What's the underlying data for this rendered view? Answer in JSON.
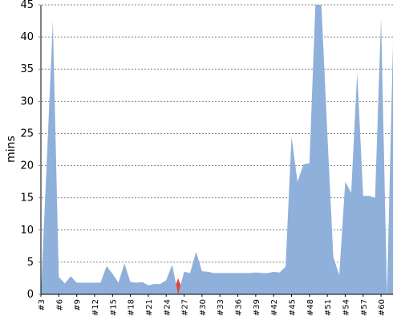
{
  "chart_data": {
    "type": "area",
    "ylabel": "mins",
    "categories": [
      "#3",
      null,
      null,
      "#6",
      null,
      null,
      "#9",
      null,
      null,
      "#12",
      null,
      null,
      "#15",
      null,
      null,
      "#18",
      null,
      null,
      "#21",
      null,
      null,
      "#24",
      null,
      null,
      "#27",
      null,
      null,
      "#30",
      null,
      null,
      "#33",
      null,
      null,
      "#36",
      null,
      null,
      "#39",
      null,
      null,
      "#42",
      null,
      null,
      "#45",
      null,
      null,
      "#48",
      null,
      null,
      "#51",
      null,
      null,
      "#54",
      null,
      null,
      "#57",
      null,
      null,
      "#60",
      null,
      null
    ],
    "series": [
      {
        "color": "#e0453a",
        "values": [
          null,
          null,
          null,
          null,
          null,
          null,
          null,
          null,
          null,
          null,
          null,
          null,
          null,
          null,
          null,
          null,
          null,
          null,
          null,
          null,
          null,
          null,
          0,
          2.5,
          0,
          null,
          null,
          null,
          null,
          null,
          null,
          null,
          null,
          null,
          null,
          null,
          null,
          null,
          null,
          null,
          null,
          null,
          null,
          null,
          null,
          null,
          null,
          null,
          null,
          null,
          null,
          null,
          null,
          null,
          null,
          null,
          null,
          null,
          null,
          null
        ]
      },
      {
        "color": "#8fb0da",
        "values": [
          0,
          21,
          42.5,
          2.7,
          1.7,
          2.8,
          1.8,
          1.8,
          1.8,
          1.8,
          1.8,
          4.4,
          3.2,
          1.8,
          4.8,
          1.9,
          1.8,
          1.9,
          1.4,
          1.6,
          1.6,
          2.2,
          4.6,
          0,
          3.5,
          3.3,
          6.6,
          3.6,
          3.5,
          3.3,
          3.3,
          3.3,
          3.3,
          3.3,
          3.3,
          3.3,
          3.4,
          3.3,
          3.3,
          3.5,
          3.4,
          4.3,
          24.5,
          17.5,
          20.2,
          20.4,
          45,
          45,
          25,
          5.8,
          3,
          17.5,
          15.8,
          34.5,
          15.3,
          15.3,
          15,
          43,
          0,
          39
        ]
      }
    ],
    "ylim": [
      0,
      45
    ],
    "yticks": [
      0,
      5,
      10,
      15,
      20,
      25,
      30,
      35,
      40,
      45
    ],
    "grid": true
  }
}
